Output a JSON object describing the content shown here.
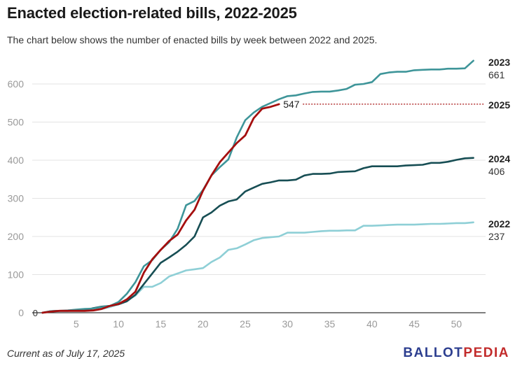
{
  "header": {
    "title": "Enacted election-related bills, 2022-2025",
    "subtitle": "The chart below shows the number of enacted bills by week between 2022 and 2025."
  },
  "footer": {
    "note": "Current as of July 17, 2025",
    "brand_part1": "BALLOT",
    "brand_part2": "PEDIA"
  },
  "chart_data": {
    "type": "line",
    "title": "Enacted election-related bills, 2022-2025",
    "xlabel": "",
    "ylabel": "",
    "xlim": [
      0,
      53
    ],
    "ylim": [
      0,
      660
    ],
    "x_ticks": [
      5,
      10,
      15,
      20,
      25,
      30,
      35,
      40,
      45,
      50
    ],
    "y_ticks": [
      0,
      100,
      200,
      300,
      400,
      500,
      600
    ],
    "grid": "horizontal",
    "series": [
      {
        "name": "2022",
        "end_label": "237",
        "color": "#8ecfd6",
        "x": [
          1,
          2,
          3,
          4,
          5,
          6,
          7,
          8,
          9,
          10,
          11,
          12,
          13,
          14,
          15,
          16,
          17,
          18,
          19,
          20,
          21,
          22,
          23,
          24,
          25,
          26,
          27,
          28,
          29,
          30,
          31,
          32,
          33,
          34,
          35,
          36,
          37,
          38,
          39,
          40,
          41,
          42,
          43,
          44,
          45,
          46,
          47,
          48,
          49,
          50,
          51,
          52
        ],
        "values": [
          0,
          4,
          5,
          5,
          5,
          5,
          6,
          10,
          15,
          22,
          32,
          45,
          68,
          68,
          78,
          95,
          103,
          111,
          114,
          117,
          133,
          145,
          165,
          169,
          179,
          190,
          196,
          198,
          200,
          210,
          210,
          210,
          212,
          214,
          215,
          215,
          216,
          216,
          228,
          228,
          229,
          230,
          231,
          231,
          231,
          232,
          233,
          233,
          234,
          235,
          235,
          237
        ]
      },
      {
        "name": "2023",
        "end_label": "661",
        "color": "#3e9599",
        "x": [
          1,
          2,
          3,
          4,
          5,
          6,
          7,
          8,
          9,
          10,
          11,
          12,
          13,
          14,
          15,
          16,
          17,
          18,
          19,
          20,
          21,
          22,
          23,
          24,
          25,
          26,
          27,
          28,
          29,
          30,
          31,
          32,
          33,
          34,
          35,
          36,
          37,
          38,
          39,
          40,
          41,
          42,
          43,
          44,
          45,
          46,
          47,
          48,
          49,
          50,
          51,
          52
        ],
        "values": [
          0,
          4,
          5,
          6,
          8,
          10,
          11,
          15,
          18,
          28,
          50,
          80,
          122,
          138,
          165,
          185,
          220,
          282,
          293,
          322,
          360,
          382,
          402,
          460,
          505,
          525,
          540,
          550,
          560,
          568,
          570,
          575,
          579,
          580,
          580,
          583,
          587,
          598,
          600,
          605,
          626,
          630,
          632,
          632,
          636,
          637,
          638,
          638,
          640,
          640,
          641,
          661
        ]
      },
      {
        "name": "2024",
        "end_label": "406",
        "color": "#174e54",
        "x": [
          1,
          2,
          3,
          4,
          5,
          6,
          7,
          8,
          9,
          10,
          11,
          12,
          13,
          14,
          15,
          16,
          17,
          18,
          19,
          20,
          21,
          22,
          23,
          24,
          25,
          26,
          27,
          28,
          29,
          30,
          31,
          32,
          33,
          34,
          35,
          36,
          37,
          38,
          39,
          40,
          41,
          42,
          43,
          44,
          45,
          46,
          47,
          48,
          49,
          50,
          51,
          52
        ],
        "values": [
          0,
          4,
          5,
          5,
          6,
          6,
          12,
          16,
          18,
          22,
          30,
          47,
          75,
          103,
          131,
          145,
          160,
          178,
          200,
          250,
          263,
          281,
          292,
          297,
          318,
          328,
          338,
          342,
          347,
          347,
          349,
          360,
          364,
          364,
          365,
          369,
          370,
          371,
          379,
          384,
          384,
          384,
          384,
          386,
          387,
          388,
          393,
          393,
          396,
          401,
          405,
          406
        ]
      },
      {
        "name": "2025",
        "end_label": "547",
        "color": "#a50f0f",
        "x": [
          1,
          2,
          3,
          4,
          5,
          6,
          7,
          8,
          9,
          10,
          11,
          12,
          13,
          14,
          15,
          16,
          17,
          18,
          19,
          20,
          21,
          22,
          23,
          24,
          25,
          26,
          27,
          28,
          29
        ],
        "values": [
          0,
          3,
          5,
          5,
          5,
          5,
          6,
          10,
          18,
          23,
          35,
          55,
          105,
          140,
          165,
          188,
          205,
          242,
          270,
          320,
          360,
          395,
          420,
          445,
          465,
          510,
          535,
          540,
          547
        ]
      }
    ],
    "reference_line": {
      "series": "2025",
      "value": 547,
      "style": "dotted"
    }
  }
}
